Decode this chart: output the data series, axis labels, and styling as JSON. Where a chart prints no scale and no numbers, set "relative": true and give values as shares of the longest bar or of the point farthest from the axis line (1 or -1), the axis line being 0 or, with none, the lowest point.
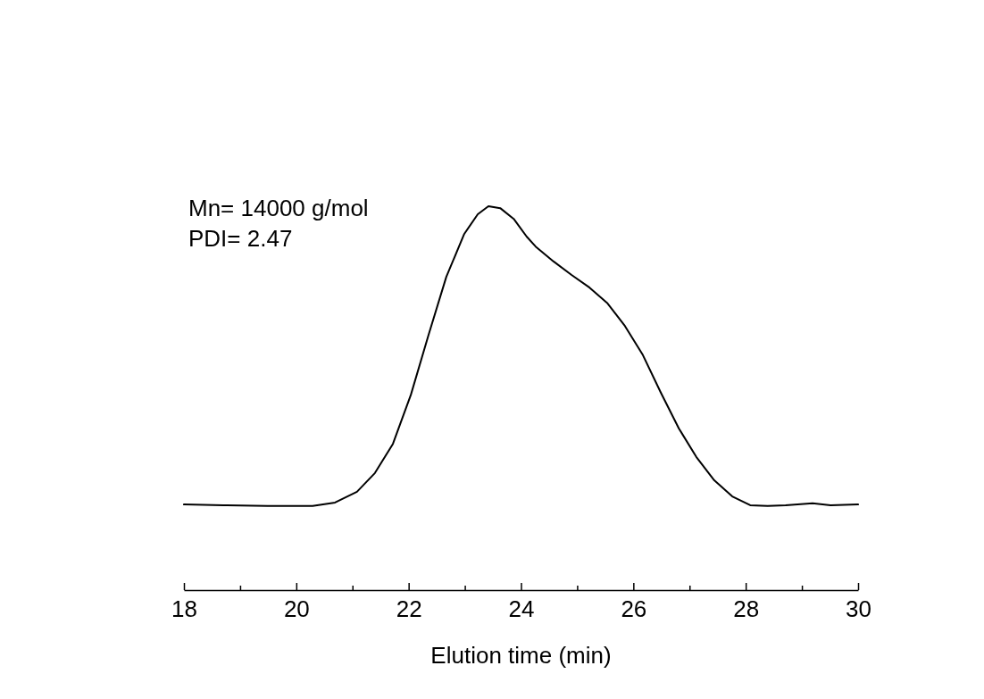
{
  "chart_data": {
    "type": "line",
    "relative": true,
    "xlabel": "Elution time (min)",
    "xlim": [
      18,
      30
    ],
    "xticks": [
      18,
      {
        "value": 19,
        "label": null
      },
      20,
      {
        "value": 21,
        "label": null
      },
      22,
      {
        "value": 23,
        "label": null
      },
      24,
      {
        "value": 25,
        "label": null
      },
      26,
      {
        "value": 27,
        "label": null
      },
      28,
      {
        "value": 29,
        "label": null
      },
      30
    ],
    "annotations": [
      "Mn= 14000 g/mol",
      "PDI= 2.47"
    ],
    "series": [
      {
        "color": "#000000",
        "x": [
          18.0,
          18.7,
          19.49,
          20.29,
          20.69,
          21.08,
          21.4,
          21.72,
          22.04,
          22.35,
          22.67,
          22.99,
          23.23,
          23.42,
          23.63,
          23.87,
          24.1,
          24.26,
          24.58,
          24.9,
          25.22,
          25.54,
          25.85,
          26.17,
          26.49,
          26.81,
          27.12,
          27.44,
          27.76,
          28.08,
          28.39,
          28.71,
          29.19,
          29.51,
          30.0
        ],
        "values": [
          0.223,
          0.221,
          0.219,
          0.219,
          0.228,
          0.256,
          0.305,
          0.381,
          0.509,
          0.663,
          0.816,
          0.928,
          0.979,
          1.0,
          0.995,
          0.967,
          0.921,
          0.895,
          0.856,
          0.821,
          0.788,
          0.747,
          0.688,
          0.612,
          0.514,
          0.421,
          0.347,
          0.286,
          0.244,
          0.221,
          0.219,
          0.221,
          0.226,
          0.221,
          0.223
        ]
      }
    ]
  }
}
